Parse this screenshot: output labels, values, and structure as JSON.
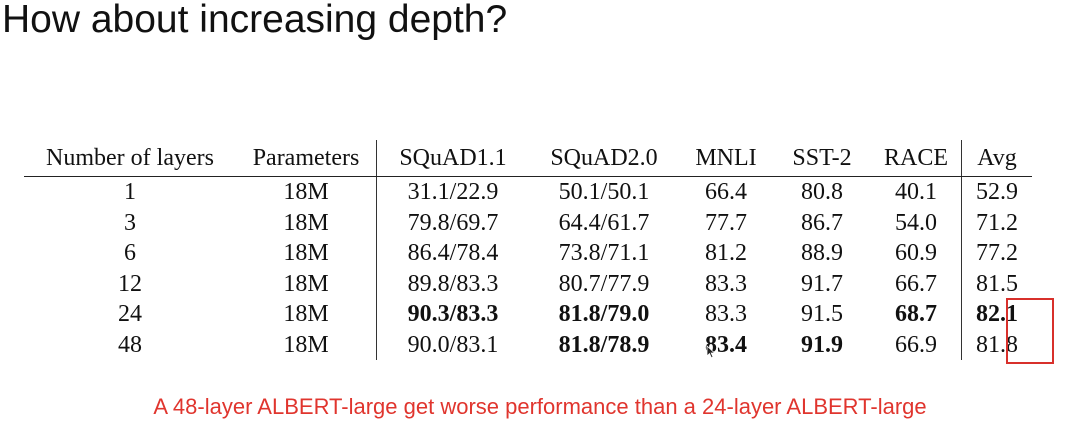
{
  "slide": {
    "title": "How about increasing depth?",
    "caption": "A 48-layer ALBERT-large get worse performance than a 24-layer ALBERT-large",
    "accent_color": "#e0352e",
    "cursor_icon": "mouse-pointer-icon"
  },
  "table": {
    "headers": [
      "Number of layers",
      "Parameters",
      "SQuAD1.1",
      "SQuAD2.0",
      "MNLI",
      "SST-2",
      "RACE",
      "Avg"
    ],
    "rows": [
      [
        "1",
        "18M",
        "31.1/22.9",
        "50.1/50.1",
        "66.4",
        "80.8",
        "40.1",
        "52.9"
      ],
      [
        "3",
        "18M",
        "79.8/69.7",
        "64.4/61.7",
        "77.7",
        "86.7",
        "54.0",
        "71.2"
      ],
      [
        "6",
        "18M",
        "86.4/78.4",
        "73.8/71.1",
        "81.2",
        "88.9",
        "60.9",
        "77.2"
      ],
      [
        "12",
        "18M",
        "89.8/83.3",
        "80.7/77.9",
        "83.3",
        "91.7",
        "66.7",
        "81.5"
      ],
      [
        "24",
        "18M",
        "90.3/83.3",
        "81.8/79.0",
        "83.3",
        "91.5",
        "68.7",
        "82.1"
      ],
      [
        "48",
        "18M",
        "90.0/83.1",
        "81.8/78.9",
        "83.4",
        "91.9",
        "66.9",
        "81.8"
      ]
    ],
    "bold_cells": [
      [
        4,
        2
      ],
      [
        4,
        3
      ],
      [
        4,
        6
      ],
      [
        4,
        7
      ],
      [
        5,
        3
      ],
      [
        5,
        4
      ],
      [
        5,
        5
      ]
    ],
    "highlighted_column": "Avg",
    "highlighted_rows": [
      "24",
      "48"
    ]
  }
}
